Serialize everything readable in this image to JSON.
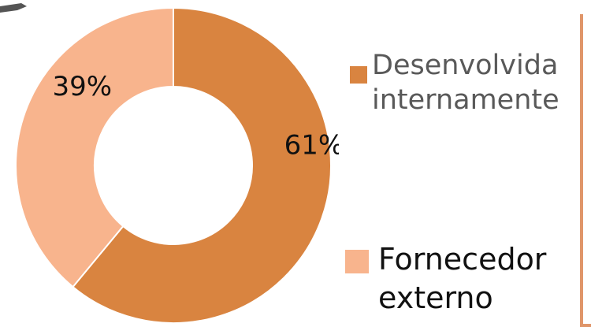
{
  "chart_data": {
    "type": "pie",
    "donut": true,
    "categories": [
      "Desenvolvida internamente",
      "Fornecedor externo"
    ],
    "values": [
      61,
      39
    ],
    "value_labels": [
      "61%",
      "39%"
    ],
    "colors": [
      "#D98440",
      "#F8B48D"
    ],
    "legend": [
      {
        "label_lines": [
          "Desenvolvida",
          "internamente"
        ],
        "color": "#D98440"
      },
      {
        "label_lines": [
          "Fornecedor",
          "externo"
        ],
        "color": "#F8B48D"
      }
    ],
    "legend_position": "right"
  }
}
